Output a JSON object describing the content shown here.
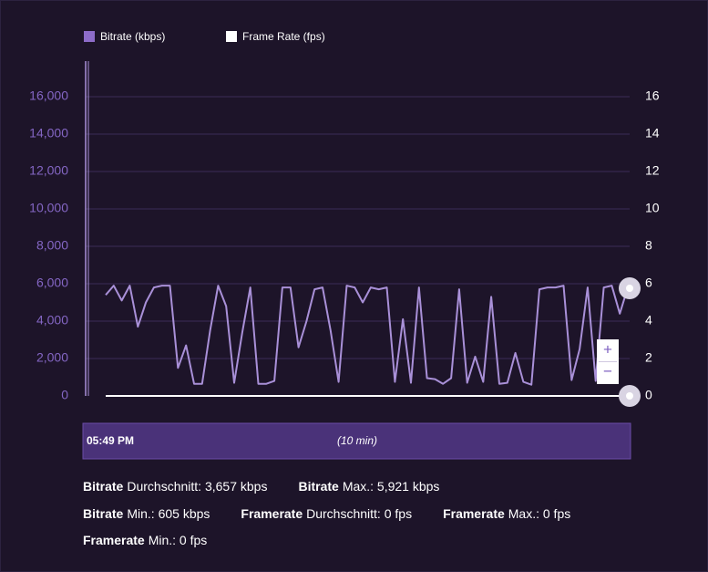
{
  "chart_data": {
    "type": "line",
    "series": [
      {
        "name": "Bitrate (kbps)",
        "color": "#a990d8",
        "legend_color": "#8d6cc9",
        "values": [
          5400,
          5900,
          5100,
          5900,
          3700,
          5000,
          5800,
          5900,
          5900,
          1500,
          2700,
          650,
          650,
          3500,
          5900,
          4800,
          700,
          3400,
          5800,
          650,
          650,
          800,
          5800,
          5800,
          2600,
          4000,
          5700,
          5800,
          3500,
          750,
          5900,
          5800,
          5000,
          5800,
          5700,
          5800,
          750,
          4100,
          700,
          5800,
          950,
          900,
          650,
          950,
          5700,
          700,
          2100,
          750,
          5300,
          650,
          700,
          2300,
          750,
          600,
          5700,
          5800,
          5800,
          5900,
          850,
          2500,
          5800,
          800,
          5800,
          5900,
          4400,
          5800
        ]
      },
      {
        "name": "Frame Rate (fps)",
        "color": "#ffffff",
        "legend_color": "#ffffff",
        "axis": "y2",
        "values": [
          0,
          0,
          0,
          0,
          0,
          0,
          0,
          0,
          0,
          0,
          0,
          0,
          0,
          0,
          0,
          0,
          0,
          0,
          0,
          0,
          0,
          0,
          0,
          0,
          0,
          0,
          0,
          0,
          0,
          0,
          0,
          0,
          0,
          0,
          0,
          0,
          0,
          0,
          0,
          0,
          0,
          0,
          0,
          0,
          0,
          0,
          0,
          0,
          0,
          0,
          0,
          0,
          0,
          0,
          0,
          0,
          0,
          0,
          0,
          0,
          0,
          0,
          0,
          0,
          0,
          0
        ]
      }
    ],
    "ylim": [
      0,
      18000
    ],
    "yticks": [
      {
        "value": 0,
        "label": "0"
      },
      {
        "value": 2000,
        "label": "2,000"
      },
      {
        "value": 4000,
        "label": "4,000"
      },
      {
        "value": 6000,
        "label": "6,000"
      },
      {
        "value": 8000,
        "label": "8,000"
      },
      {
        "value": 10000,
        "label": "10,000"
      },
      {
        "value": 12000,
        "label": "12,000"
      },
      {
        "value": 14000,
        "label": "14,000"
      },
      {
        "value": 16000,
        "label": "16,000"
      }
    ],
    "y2lim": [
      0,
      18
    ],
    "y2ticks": [
      0,
      2,
      4,
      6,
      8,
      10,
      12,
      14,
      16
    ],
    "grid": true,
    "legend": "top-left",
    "navigator": {
      "start": "05:49 PM",
      "range": "(10 min)"
    },
    "zoom": {
      "in": "+",
      "out": "−"
    }
  },
  "stats": [
    {
      "label": "Bitrate",
      "text": "Durchschnitt: 3,657 kbps"
    },
    {
      "label": "Bitrate",
      "text": "Max.: 5,921 kbps"
    },
    {
      "label": "Bitrate",
      "text": "Min.: 605 kbps"
    },
    {
      "label": "Framerate",
      "text": "Durchschnitt: 0 fps"
    },
    {
      "label": "Framerate",
      "text": "Max.: 0 fps"
    },
    {
      "label": "Framerate",
      "text": "Min.: 0 fps"
    }
  ]
}
